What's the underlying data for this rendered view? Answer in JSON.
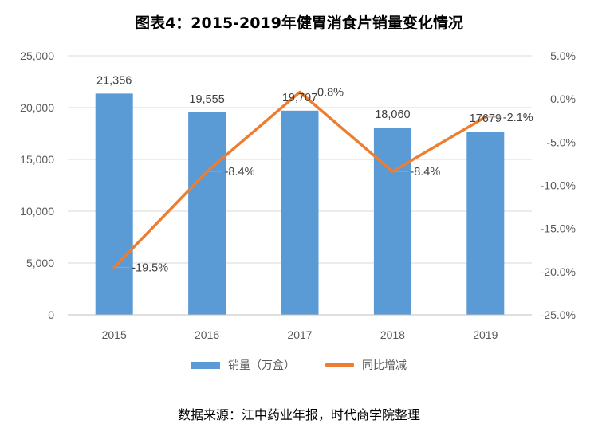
{
  "title": "图表4：2015-2019年健胃消食片销量变化情况",
  "source": "数据来源：江中药业年报，时代商学院整理",
  "colors": {
    "bar": "#5B9BD5",
    "line": "#ED7D31",
    "grid": "#D9D9D9",
    "axis": "#BFBFBF"
  },
  "chart_data": {
    "type": "bar",
    "categories": [
      "2015",
      "2016",
      "2017",
      "2018",
      "2019"
    ],
    "series": [
      {
        "name": "销量（万盒）",
        "type": "bar",
        "axis": "left",
        "values": [
          21356,
          19555,
          19707,
          18060,
          17679
        ],
        "labels": [
          "21,356",
          "19,555",
          "19,707",
          "18,060",
          "17679"
        ]
      },
      {
        "name": "同比增减",
        "type": "line",
        "axis": "right",
        "values": [
          -19.5,
          -8.4,
          0.8,
          -8.4,
          -2.1
        ],
        "labels": [
          "-19.5%",
          "-8.4%",
          "0.8%",
          "-8.4%",
          "-2.1%"
        ]
      }
    ],
    "y_left": {
      "min": 0,
      "max": 25000,
      "ticks": [
        0,
        5000,
        10000,
        15000,
        20000,
        25000
      ],
      "tick_labels": [
        "0",
        "5,000",
        "10,000",
        "15,000",
        "20,000",
        "25,000"
      ]
    },
    "y_right": {
      "min": -25,
      "max": 5,
      "ticks": [
        -25,
        -20,
        -15,
        -10,
        -5,
        0,
        5
      ],
      "tick_labels": [
        "-25.0%",
        "-20.0%",
        "-15.0%",
        "-10.0%",
        "-5.0%",
        "0.0%",
        "5.0%"
      ]
    },
    "grid": true,
    "legend_position": "bottom"
  }
}
